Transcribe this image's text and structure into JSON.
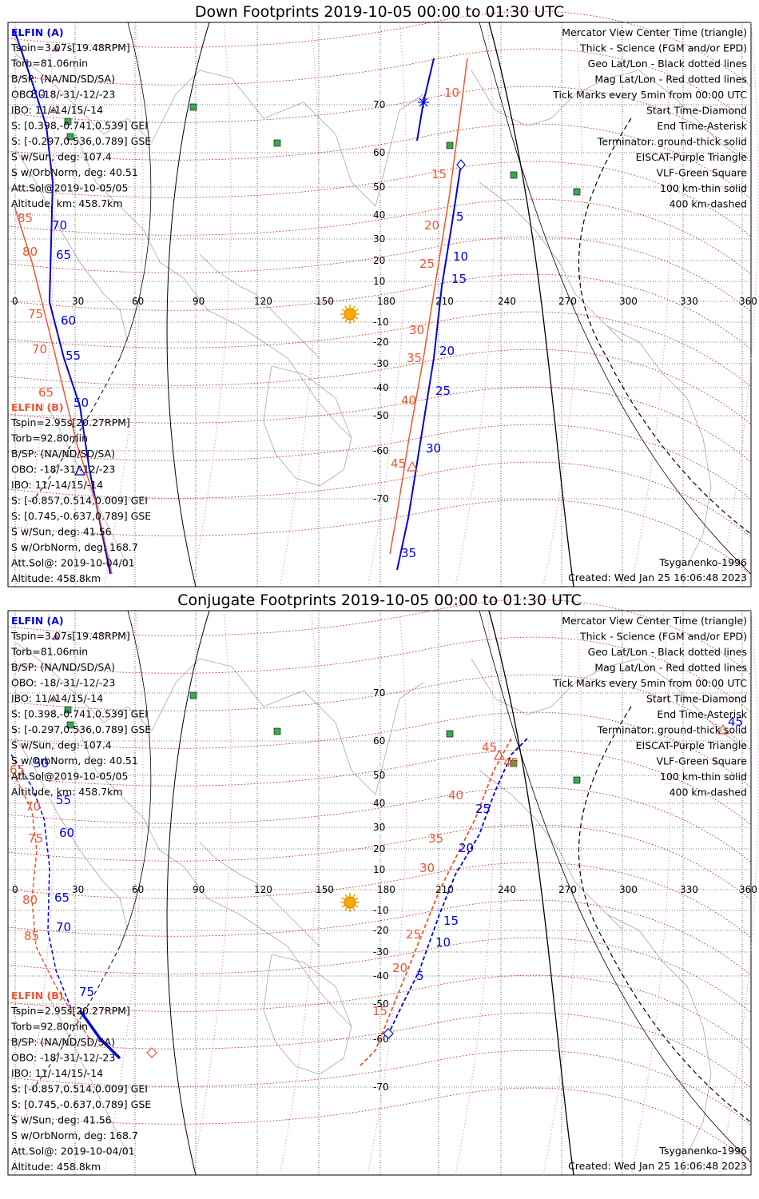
{
  "colors": {
    "elfin_a": "#0000e0",
    "elfin_b": "#ee5533",
    "mag_grid": "#dd0000",
    "sun": "#ffa500",
    "eiscat": "#dd88dd",
    "vlf": "#5a9a5a",
    "vlf_fill": "#3aaa4a"
  },
  "shared": {
    "elfin_a": {
      "name": "ELFIN (A)",
      "lines": [
        "Tspin=3.07s[19.48RPM]",
        "Torb=81.06min",
        "B/SP: (NA/ND/SD/SA)",
        "OBO: -18/-31/-12/-23",
        "IBO: 11/-14/15/-14",
        "S: [0.398,-0.741,0.539] GEI",
        "S: [-0.297,0.536,0.789] GSE",
        "S w/Sun, deg: 107.4",
        "S w/OrbNorm, deg: 40.51",
        "Att.Sol@2019-10-05/05",
        "Altitude, km: 458.7km"
      ]
    },
    "elfin_b": {
      "name": "ELFIN (B)",
      "lines": [
        "Tspin=2.95s[20.27RPM]",
        "Torb=92.80min",
        "B/SP: (NA/ND/SD/SA)",
        "OBO: -18/-31/-12/-23",
        "IBO: 11/-14/15/-14",
        "S: [-0.857,0.514,0.009] GEI",
        "S: [0.745,-0.637,0.789] GSE",
        "S w/Sun, deg: 41.56",
        "S w/OrbNorm, deg: 168.7",
        "Att.Sol@: 2019-10-04/01",
        "Altitude: 458.8km"
      ]
    },
    "legend": [
      "Mercator View Center Time (triangle)",
      "Thick - Science (FGM and/or EPD)",
      "Geo Lat/Lon - Black dotted lines",
      "Mag Lat/Lon - Red dotted lines",
      "Tick Marks every 5min from 00:00 UTC",
      "Start Time-Diamond",
      "End Time-Asterisk",
      "Terminator: ground-thick solid",
      "EISCAT-Purple Triangle",
      "VLF-Green Square",
      "100 km-thin solid",
      "400 km-dashed"
    ],
    "model": "Tsyganenko-1996",
    "created": "Created: Wed Jan 25 16:06:48 2023",
    "lon_ticks": [
      "0",
      "30",
      "60",
      "90",
      "120",
      "150",
      "180",
      "210",
      "240",
      "270",
      "300",
      "330",
      "360"
    ],
    "lat_ticks": [
      "70",
      "60",
      "50",
      "40",
      "30",
      "20",
      "10",
      "-10",
      "-20",
      "-30",
      "-40",
      "-50",
      "-60",
      "-70"
    ]
  },
  "panels": [
    {
      "title": "Down Footprints 2019-10-05 00:00 to 01:30 UTC",
      "elfin_a_track_labels": [
        "5",
        "10",
        "15",
        "20",
        "25",
        "30",
        "35",
        "50",
        "55",
        "60",
        "65",
        "70",
        "80"
      ],
      "elfin_b_track_labels": [
        "10",
        "15",
        "20",
        "25",
        "30",
        "35",
        "40",
        "45",
        "65",
        "70",
        "75",
        "80",
        "85"
      ]
    },
    {
      "title": "Conjugate Footprints 2019-10-05 00:00 to 01:30 UTC",
      "elfin_a_track_labels": [
        "5",
        "10",
        "15",
        "20",
        "25",
        "50",
        "55",
        "60",
        "65",
        "70",
        "75",
        "45"
      ],
      "elfin_b_track_labels": [
        "15",
        "20",
        "25",
        "30",
        "35",
        "40",
        "45",
        "65",
        "70",
        "75",
        "80",
        "85",
        "45"
      ]
    }
  ]
}
